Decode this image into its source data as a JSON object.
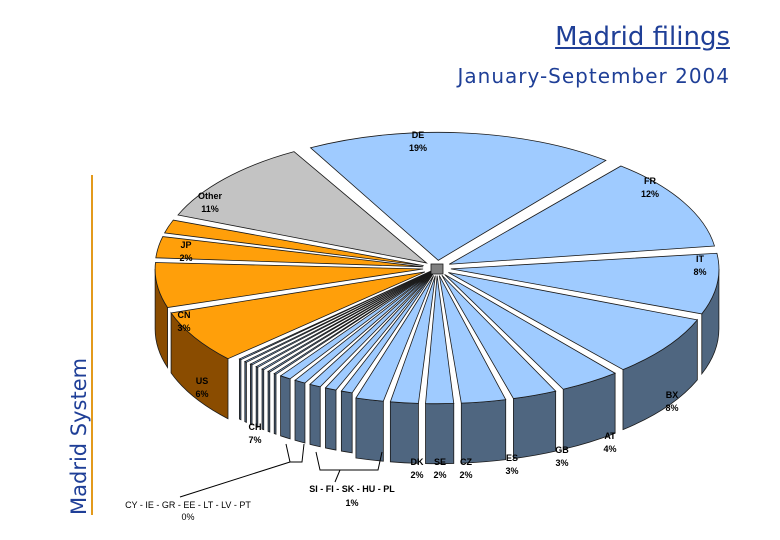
{
  "header": {
    "title": "Madrid filings",
    "subtitle": "January-September 2004",
    "side_label": "Madrid System"
  },
  "colors": {
    "eu_top": "#9fcbff",
    "eu_side": "#4f6680",
    "other_top": "#c3c3c3",
    "other_side": "#808080",
    "asia_top": "#ff9f0a",
    "asia_side": "#8a4c00",
    "accent_rule": "#e39a1c",
    "text_blue": "#1f3f97"
  },
  "chart_data": {
    "type": "pie",
    "style": "3d-exploded",
    "slices": [
      {
        "name": "DE",
        "label": "DE",
        "pct_label": "19%",
        "value": 19,
        "group": "eu"
      },
      {
        "name": "FR",
        "label": "FR",
        "pct_label": "12%",
        "value": 12,
        "group": "eu"
      },
      {
        "name": "IT",
        "label": "IT",
        "pct_label": "8%",
        "value": 8,
        "group": "eu"
      },
      {
        "name": "BX",
        "label": "BX",
        "pct_label": "8%",
        "value": 8,
        "group": "eu"
      },
      {
        "name": "AT",
        "label": "AT",
        "pct_label": "4%",
        "value": 4,
        "group": "eu"
      },
      {
        "name": "GB",
        "label": "GB",
        "pct_label": "3%",
        "value": 3,
        "group": "eu"
      },
      {
        "name": "ES",
        "label": "ES",
        "pct_label": "3%",
        "value": 3,
        "group": "eu"
      },
      {
        "name": "CZ",
        "label": "CZ",
        "pct_label": "2%",
        "value": 2,
        "group": "eu"
      },
      {
        "name": "SE",
        "label": "SE",
        "pct_label": "2%",
        "value": 2,
        "group": "eu"
      },
      {
        "name": "DK",
        "label": "DK",
        "pct_label": "2%",
        "value": 2,
        "group": "eu"
      },
      {
        "name": "SI",
        "label": "",
        "pct_label": "",
        "value": 1,
        "group": "eu"
      },
      {
        "name": "FI",
        "label": "",
        "pct_label": "",
        "value": 1,
        "group": "eu"
      },
      {
        "name": "SK",
        "label": "",
        "pct_label": "",
        "value": 1,
        "group": "eu"
      },
      {
        "name": "HU",
        "label": "",
        "pct_label": "",
        "value": 1,
        "group": "eu"
      },
      {
        "name": "PL",
        "label": "",
        "pct_label": "",
        "value": 1,
        "group": "eu"
      },
      {
        "name": "CY",
        "label": "",
        "pct_label": "",
        "value": 0,
        "group": "eu"
      },
      {
        "name": "IE",
        "label": "",
        "pct_label": "",
        "value": 0,
        "group": "eu"
      },
      {
        "name": "GR",
        "label": "",
        "pct_label": "",
        "value": 0,
        "group": "eu"
      },
      {
        "name": "EE",
        "label": "",
        "pct_label": "",
        "value": 0,
        "group": "eu"
      },
      {
        "name": "LT",
        "label": "",
        "pct_label": "",
        "value": 0,
        "group": "eu"
      },
      {
        "name": "LV",
        "label": "",
        "pct_label": "",
        "value": 0,
        "group": "eu"
      },
      {
        "name": "PT",
        "label": "",
        "pct_label": "",
        "value": 0,
        "group": "eu"
      },
      {
        "name": "CH",
        "label": "CH",
        "pct_label": "7%",
        "value": 7,
        "group": "asia"
      },
      {
        "name": "US",
        "label": "US",
        "pct_label": "6%",
        "value": 6,
        "group": "asia"
      },
      {
        "name": "CN",
        "label": "CN",
        "pct_label": "3%",
        "value": 3,
        "group": "asia"
      },
      {
        "name": "JP",
        "label": "JP",
        "pct_label": "2%",
        "value": 2,
        "group": "asia"
      },
      {
        "name": "Other",
        "label": "Other",
        "pct_label": "11%",
        "value": 11,
        "group": "other"
      }
    ],
    "group_labels": [
      {
        "name": "SI-FI-SK-HU-PL",
        "label": "SI - FI - SK - HU - PL",
        "pct_label": "1%"
      },
      {
        "name": "CY-IE-GR-EE-LT-LV-PT",
        "label": "CY - IE - GR - EE - LT - LV - PT",
        "pct_label": "0%"
      }
    ],
    "title": "Madrid filings",
    "subtitle": "January-September 2004"
  }
}
